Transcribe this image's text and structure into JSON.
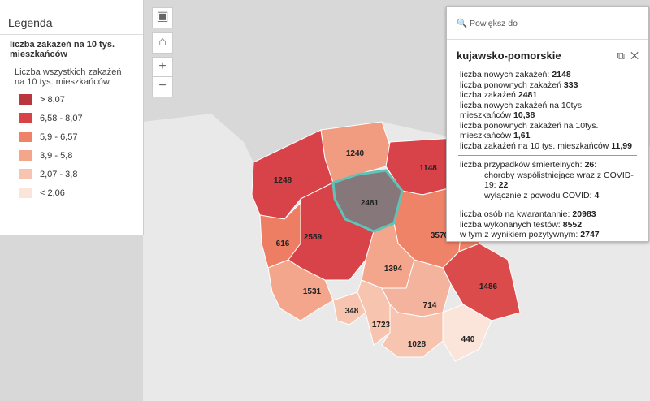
{
  "legend": {
    "title": "Legenda",
    "layer_title": "liczba zakażeń na 10 tys. mieszkańców",
    "field_title": "Liczba wszystkich zakażeń na 10 tys. mieszkańców",
    "items": [
      "> 8,07",
      "6,58 - 8,07",
      "5,9 - 6,57",
      "3,9 - 5,8",
      "2,07 - 3,8",
      "< 2,06"
    ]
  },
  "map": {
    "labels": [
      "1248",
      "1240",
      "1148",
      "2481",
      "616",
      "2589",
      "3570",
      "1486",
      "1394",
      "1531",
      "348",
      "1723",
      "714",
      "1028",
      "440"
    ]
  },
  "popup": {
    "zoom": "Powiększ do",
    "title": "kujawsko-pomorskie",
    "section1": [
      {
        "label": "liczba nowych zakażeń:",
        "value": "2148"
      },
      {
        "label": "liczba ponownych zakażeń",
        "value": "333"
      },
      {
        "label": "liczba zakażeń",
        "value": "2481"
      },
      {
        "label": "liczba nowych zakażeń na 10tys. mieszkańców",
        "value": "10,38"
      },
      {
        "label": "liczba ponownych  zakażeń na 10tys. mieszkańców",
        "value": "1,61"
      },
      {
        "label": "liczba zakażeń na 10 tys. mieszkańców",
        "value": "11,99"
      }
    ],
    "deaths": {
      "label": "liczba przypadków śmiertelnych:",
      "value": "26:"
    },
    "deaths_sub": [
      {
        "label": "choroby współistniejące wraz z COVID-19:",
        "value": "22"
      },
      {
        "label": "wyłącznie z powodu COVID:",
        "value": "4"
      }
    ],
    "section3": [
      {
        "label": "liczba osób na kwarantannie:",
        "value": "20983"
      },
      {
        "label": "liczba wykonanych testów:",
        "value": "8552"
      },
      {
        "label": "w tym z wynikiem pozytywnym:",
        "value": "2747"
      }
    ]
  }
}
